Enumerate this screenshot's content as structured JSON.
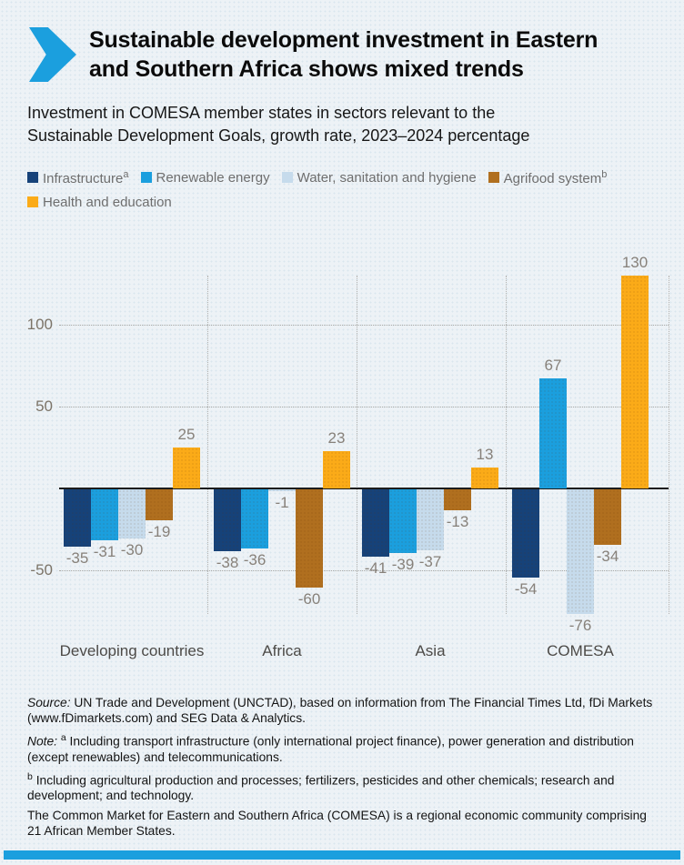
{
  "header": {
    "title_line1": "Sustainable development investment in Eastern",
    "title_line2": "and Southern Africa shows mixed trends",
    "subtitle_line1": "Investment in COMESA member states in sectors relevant to the",
    "subtitle_line2": "Sustainable Development Goals, growth rate, 2023–2024 percentage"
  },
  "legend": {
    "items": [
      {
        "label": "Infrastructure",
        "sup": "a",
        "color": "#164279",
        "row": 1
      },
      {
        "label": "Renewable energy",
        "sup": "",
        "color": "#1B9FDE",
        "row": 1
      },
      {
        "label": "Water, sanitation and hygiene",
        "sup": "",
        "color": "#C6DBEC",
        "row": 1
      },
      {
        "label": "Agrifood system",
        "sup": "b",
        "color": "#B06F1F",
        "row": 1
      },
      {
        "label": "Health and education",
        "sup": "",
        "color": "#FBAB18",
        "row": 2
      }
    ]
  },
  "chart_data": {
    "type": "bar",
    "title": "Sustainable development investment in Eastern and Southern Africa shows mixed trends",
    "subtitle": "Investment in COMESA member states in sectors relevant to the Sustainable Development Goals, growth rate, 2023–2024 percentage",
    "categories": [
      "Developing countries",
      "Africa",
      "Asia",
      "COMESA"
    ],
    "series": [
      {
        "name": "Infrastructure",
        "color": "#164279",
        "values": [
          -35,
          -38,
          -41,
          -54
        ]
      },
      {
        "name": "Renewable energy",
        "color": "#1B9FDE",
        "values": [
          -31,
          -36,
          -39,
          67
        ]
      },
      {
        "name": "Water, sanitation and hygiene",
        "color": "#C6DBEC",
        "values": [
          -30,
          -1,
          -37,
          -76
        ]
      },
      {
        "name": "Agrifood system",
        "color": "#B06F1F",
        "values": [
          -19,
          -60,
          -13,
          -34
        ]
      },
      {
        "name": "Health and education",
        "color": "#FBAB18",
        "values": [
          25,
          23,
          13,
          130
        ]
      }
    ],
    "yticks": [
      100,
      50,
      -50
    ],
    "ylim": [
      -90,
      145
    ],
    "xlabel": "",
    "ylabel": "",
    "grid": "dotted horizontal gridlines at yticks; dotted vertical separators between category groups; solid zero baseline",
    "legend_position": "top",
    "value_labels": "shown at bar ends"
  },
  "footer": {
    "source_prefix": "Source:",
    "source_text": "UN Trade and Development (UNCTAD), based on information from The Financial Times Ltd, fDi Markets (www.fDimarkets.com) and SEG Data & Analytics.",
    "note_prefix": "Note:",
    "note_a_sup": "a",
    "note_a_text": "Including transport infrastructure (only international project finance), power generation and distribution (except renewables) and telecommunications.",
    "note_b_sup": "b",
    "note_b_text": "Including agricultural production and processes; fertilizers, pesticides and other chemicals; research and development; and technology.",
    "comesa_text": "The Common Market for Eastern and Southern Africa (COMESA) is a regional economic community comprising 21 African Member States."
  },
  "colors": {
    "accent_blue": "#1B9FDE",
    "navy": "#164279",
    "pale_blue": "#C6DBEC",
    "brown": "#B06F1F",
    "yellow": "#FBAB18",
    "background": "#EDF2F6",
    "zero_line": "#1C1C1C",
    "gridline": "#AAA9A6",
    "legend_text": "#6E6E6E",
    "value_label_text": "#87817A",
    "category_label_text": "#4C4A47"
  }
}
